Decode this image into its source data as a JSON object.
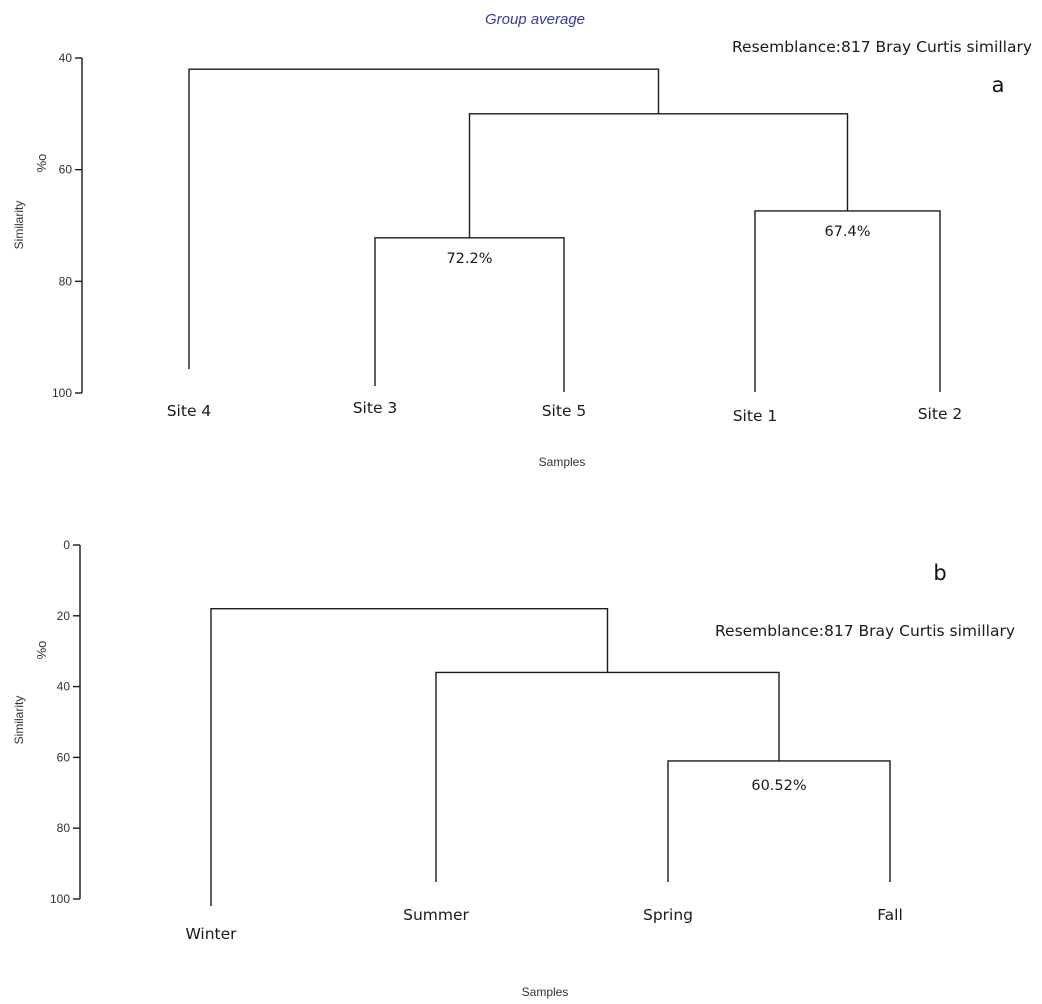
{
  "chart_data": [
    {
      "type": "dendrogram",
      "panel_label": "a",
      "title": "Group average",
      "resemblance": "Resemblance:817 Bray Curtis simillary",
      "ylabel": "Similarity",
      "yunit": "%o",
      "xlabel": "Samples",
      "ylim": [
        40,
        100
      ],
      "yticks": [
        40,
        60,
        80,
        100
      ],
      "leaves": [
        "Site 4",
        "Site 3",
        "Site 5",
        "Site 1",
        "Site 2"
      ],
      "merges": [
        {
          "left": "Site 3",
          "right": "Site 5",
          "similarity": 72.2,
          "label": "72.2%"
        },
        {
          "left": "Site 1",
          "right": "Site 2",
          "similarity": 67.4,
          "label": "67.4%"
        },
        {
          "left": "Site 3+Site 5",
          "right": "Site 1+Site 2",
          "similarity": 50,
          "label": ""
        },
        {
          "left": "Site 4",
          "right": "Site 3+Site 5+Site 1+Site 2",
          "similarity": 42,
          "label": ""
        }
      ]
    },
    {
      "type": "dendrogram",
      "panel_label": "b",
      "title": "",
      "resemblance": "Resemblance:817 Bray Curtis simillary",
      "ylabel": "Similarity",
      "yunit": "%o",
      "xlabel": "Samples",
      "ylim": [
        0,
        100
      ],
      "yticks": [
        0,
        20,
        40,
        60,
        80,
        100
      ],
      "leaves": [
        "Winter",
        "Summer",
        "Spring",
        "Fall"
      ],
      "merges": [
        {
          "left": "Spring",
          "right": "Fall",
          "similarity": 61,
          "label": "60.52%"
        },
        {
          "left": "Summer",
          "right": "Spring+Fall",
          "similarity": 36,
          "label": ""
        },
        {
          "left": "Winter",
          "right": "Summer+Spring+Fall",
          "similarity": 18,
          "label": ""
        }
      ]
    }
  ]
}
